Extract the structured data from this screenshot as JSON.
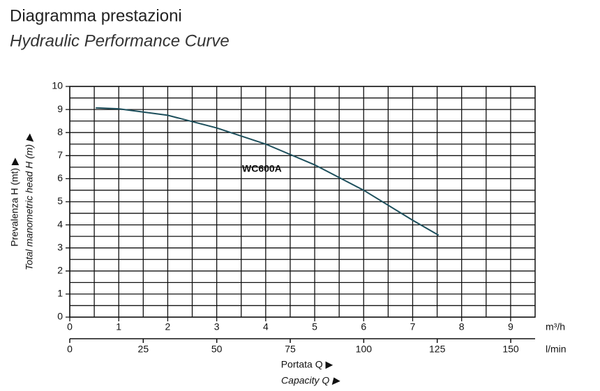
{
  "chart_data": {
    "type": "line",
    "title": "Diagramma prestazioni",
    "subtitle": "Hydraulic Performance Curve",
    "ylabel": "Prevalenza H (mt) ▶",
    "ylabel2": "Total manometric head H (m) ▶",
    "xlabel": "Portata Q ▶",
    "xlabel2": "Capacity Q ▶",
    "x_unit": "m³/h",
    "x2_unit": "l/min",
    "xlim": [
      0,
      9.5
    ],
    "ylim": [
      0,
      10
    ],
    "x2lim": [
      0,
      158.3
    ],
    "xticks": [
      0,
      1,
      2,
      3,
      4,
      5,
      6,
      7,
      8,
      9
    ],
    "x2ticks": [
      0,
      25,
      50,
      75,
      100,
      125,
      150
    ],
    "yticks": [
      0,
      1,
      2,
      3,
      4,
      5,
      6,
      7,
      8,
      9,
      10
    ],
    "xminor": [
      0.5,
      1.5,
      2.5,
      3.5,
      4.5,
      5.5,
      6.5,
      7.5,
      8.5
    ],
    "yminor": [
      0.5,
      1.5,
      2.5,
      3.5,
      4.5,
      5.5,
      6.5,
      7.5,
      8.5,
      9.5
    ],
    "grid": true,
    "series": [
      {
        "name": "WC600A",
        "color": "#1d4f5c",
        "x": [
          0.53,
          1,
          2,
          3,
          4,
          5,
          6,
          7,
          7.53
        ],
        "values": [
          9.07,
          9.03,
          8.75,
          8.2,
          7.5,
          6.6,
          5.5,
          4.2,
          3.55
        ]
      }
    ]
  }
}
